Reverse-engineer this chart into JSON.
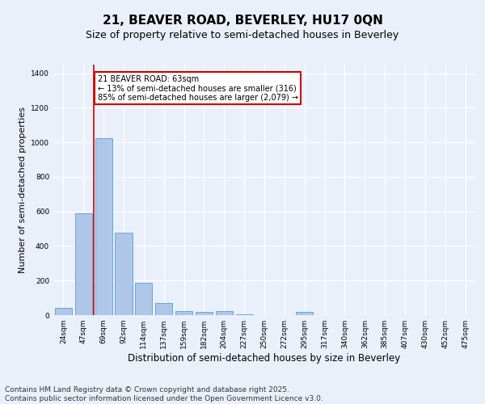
{
  "title": "21, BEAVER ROAD, BEVERLEY, HU17 0QN",
  "subtitle": "Size of property relative to semi-detached houses in Beverley",
  "xlabel": "Distribution of semi-detached houses by size in Beverley",
  "ylabel": "Number of semi-detached properties",
  "categories": [
    "24sqm",
    "47sqm",
    "69sqm",
    "92sqm",
    "114sqm",
    "137sqm",
    "159sqm",
    "182sqm",
    "204sqm",
    "227sqm",
    "250sqm",
    "272sqm",
    "295sqm",
    "317sqm",
    "340sqm",
    "362sqm",
    "385sqm",
    "407sqm",
    "430sqm",
    "452sqm",
    "475sqm"
  ],
  "values": [
    40,
    590,
    1025,
    475,
    185,
    70,
    25,
    20,
    25,
    5,
    0,
    0,
    20,
    0,
    0,
    0,
    0,
    0,
    0,
    0,
    0
  ],
  "bar_color": "#aec6e8",
  "bar_edge_color": "#5a9fd4",
  "red_line_x": 1.5,
  "annotation_text": "21 BEAVER ROAD: 63sqm\n← 13% of semi-detached houses are smaller (316)\n85% of semi-detached houses are larger (2,079) →",
  "annotation_box_color": "#ffffff",
  "annotation_box_edge": "#cc0000",
  "red_line_color": "#cc0000",
  "ylim": [
    0,
    1450
  ],
  "yticks": [
    0,
    200,
    400,
    600,
    800,
    1000,
    1200,
    1400
  ],
  "bg_color": "#eaf0fa",
  "grid_color": "#ffffff",
  "footer_line1": "Contains HM Land Registry data © Crown copyright and database right 2025.",
  "footer_line2": "Contains public sector information licensed under the Open Government Licence v3.0.",
  "title_fontsize": 11,
  "subtitle_fontsize": 9,
  "xlabel_fontsize": 8.5,
  "ylabel_fontsize": 8,
  "tick_fontsize": 6.5,
  "footer_fontsize": 6.5,
  "annotation_fontsize": 7
}
